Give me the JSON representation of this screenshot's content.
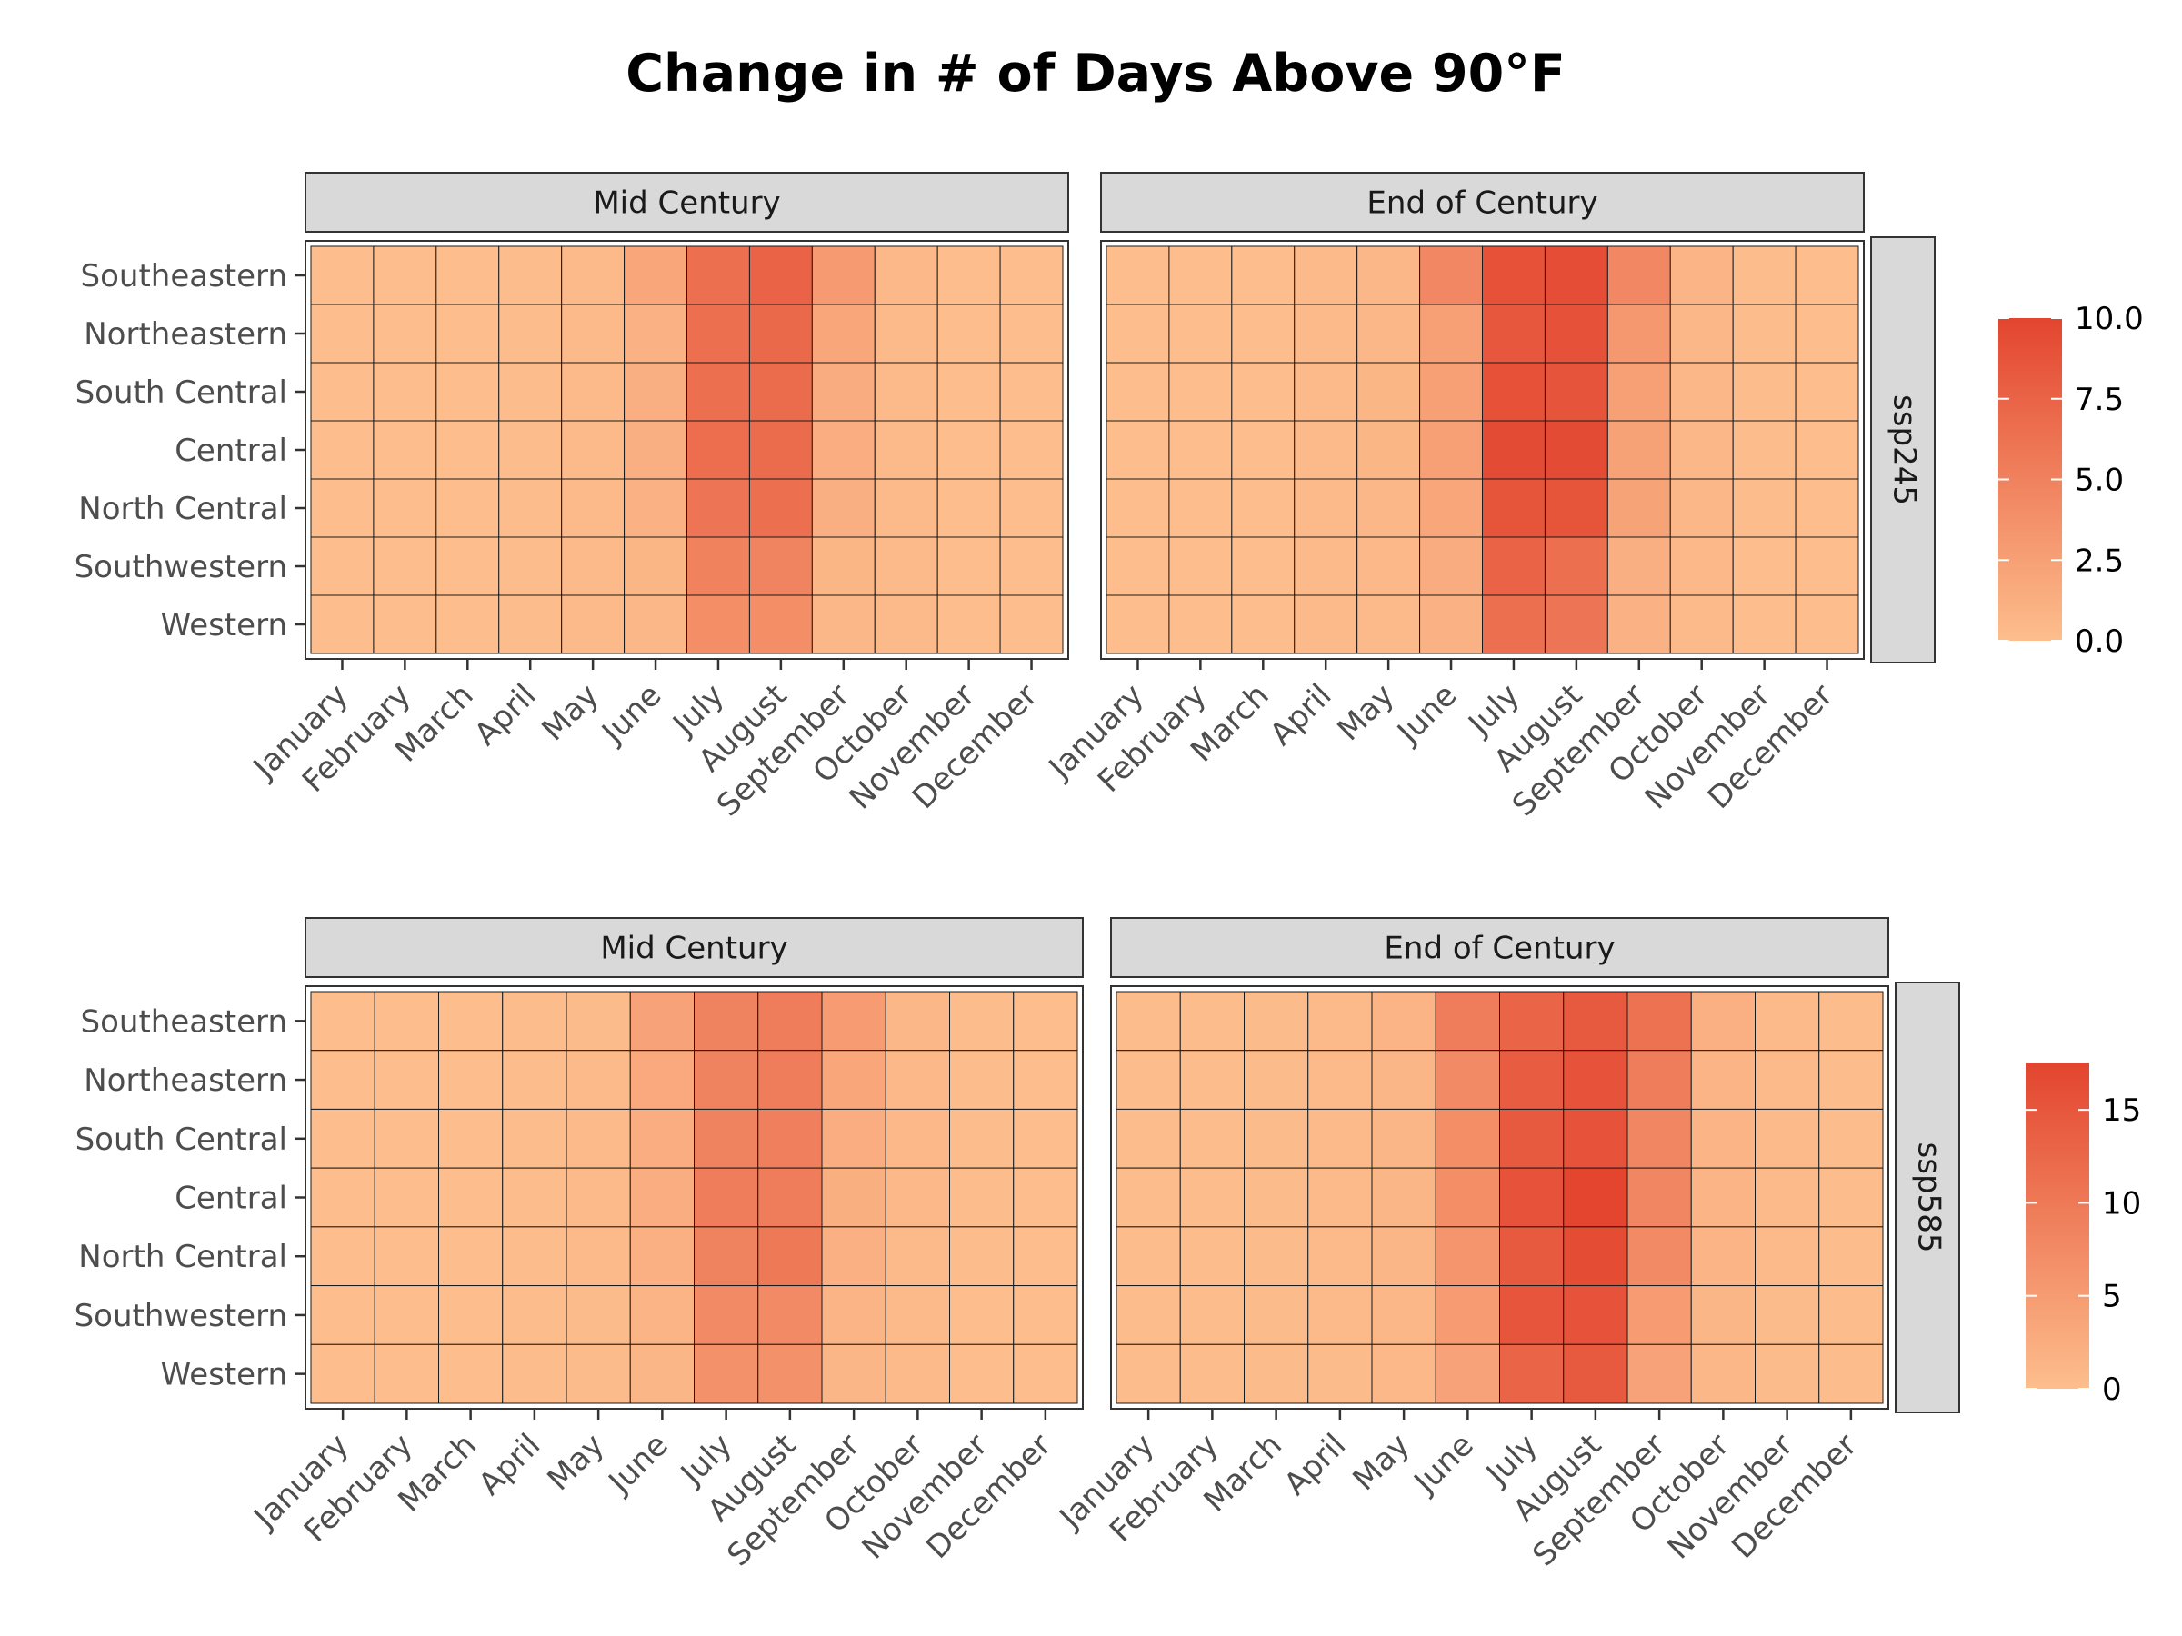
{
  "chart_data": {
    "type": "heatmap",
    "title": "Change in # of Days Above 90°F",
    "months": [
      "January",
      "February",
      "March",
      "April",
      "May",
      "June",
      "July",
      "August",
      "September",
      "October",
      "November",
      "December"
    ],
    "regions": [
      "Southeastern",
      "Northeastern",
      "South Central",
      "Central",
      "North Central",
      "Southwestern",
      "Western"
    ],
    "color_low": "#fdbe8d",
    "color_high": "#e3452f",
    "grid": false,
    "panels": [
      {
        "scenario": "ssp245",
        "legend": {
          "min": 0,
          "max": 10,
          "ticks": [
            "0.0",
            "2.5",
            "5.0",
            "7.5",
            "10.0"
          ],
          "tick_values": [
            0,
            2.5,
            5,
            7.5,
            10
          ]
        },
        "facets": [
          {
            "label": "Mid Century",
            "values": [
              [
                0.1,
                0.1,
                0.1,
                0.2,
                0.3,
                2.0,
                6.5,
                7.5,
                3.0,
                0.5,
                0.1,
                0.1
              ],
              [
                0.1,
                0.1,
                0.1,
                0.2,
                0.3,
                1.0,
                6.5,
                7.0,
                2.0,
                0.4,
                0.1,
                0.1
              ],
              [
                0.1,
                0.1,
                0.1,
                0.2,
                0.4,
                1.2,
                6.5,
                6.8,
                1.5,
                0.4,
                0.1,
                0.1
              ],
              [
                0.1,
                0.1,
                0.1,
                0.2,
                0.4,
                1.2,
                6.6,
                6.8,
                1.4,
                0.4,
                0.1,
                0.1
              ],
              [
                0.1,
                0.1,
                0.1,
                0.2,
                0.4,
                1.0,
                6.0,
                6.5,
                1.2,
                0.4,
                0.1,
                0.1
              ],
              [
                0.1,
                0.1,
                0.1,
                0.2,
                0.3,
                0.7,
                5.0,
                4.8,
                0.7,
                0.3,
                0.1,
                0.1
              ],
              [
                0.1,
                0.1,
                0.1,
                0.2,
                0.3,
                0.6,
                4.0,
                4.0,
                0.6,
                0.3,
                0.1,
                0.1
              ]
            ]
          },
          {
            "label": "End of Century",
            "values": [
              [
                0.1,
                0.1,
                0.1,
                0.3,
                0.6,
                4.5,
                9.0,
                9.3,
                4.5,
                0.8,
                0.2,
                0.1
              ],
              [
                0.1,
                0.1,
                0.1,
                0.3,
                0.6,
                2.5,
                8.5,
                8.9,
                3.2,
                0.6,
                0.2,
                0.1
              ],
              [
                0.1,
                0.1,
                0.1,
                0.3,
                0.7,
                2.5,
                9.0,
                8.7,
                2.5,
                0.6,
                0.2,
                0.1
              ],
              [
                0.1,
                0.1,
                0.1,
                0.3,
                0.7,
                2.5,
                9.5,
                9.5,
                2.4,
                0.6,
                0.2,
                0.1
              ],
              [
                0.1,
                0.1,
                0.1,
                0.3,
                0.6,
                2.0,
                8.8,
                8.8,
                2.2,
                0.6,
                0.2,
                0.1
              ],
              [
                0.1,
                0.1,
                0.1,
                0.3,
                0.5,
                1.5,
                7.5,
                6.5,
                1.2,
                0.5,
                0.1,
                0.1
              ],
              [
                0.1,
                0.1,
                0.1,
                0.3,
                0.4,
                1.0,
                6.5,
                6.0,
                1.0,
                0.4,
                0.1,
                0.1
              ]
            ]
          }
        ]
      },
      {
        "scenario": "ssp585",
        "legend": {
          "min": 0,
          "max": 17.5,
          "ticks": [
            "0",
            "5",
            "10",
            "15"
          ],
          "tick_values": [
            0,
            5,
            10,
            15
          ]
        },
        "facets": [
          {
            "label": "Mid Century",
            "values": [
              [
                0.2,
                0.2,
                0.2,
                0.3,
                0.5,
                4.0,
                8.5,
                9.5,
                5.0,
                1.0,
                0.3,
                0.2
              ],
              [
                0.2,
                0.2,
                0.2,
                0.3,
                0.6,
                3.0,
                8.5,
                9.5,
                3.5,
                0.8,
                0.3,
                0.2
              ],
              [
                0.2,
                0.2,
                0.2,
                0.3,
                0.6,
                2.5,
                8.5,
                9.0,
                2.5,
                0.8,
                0.3,
                0.2
              ],
              [
                0.2,
                0.2,
                0.2,
                0.3,
                0.6,
                2.5,
                9.5,
                9.5,
                2.2,
                0.8,
                0.3,
                0.2
              ],
              [
                0.2,
                0.2,
                0.2,
                0.3,
                0.6,
                2.0,
                8.5,
                10.0,
                2.0,
                0.7,
                0.3,
                0.2
              ],
              [
                0.2,
                0.2,
                0.2,
                0.3,
                0.5,
                1.5,
                7.5,
                7.5,
                1.5,
                0.6,
                0.2,
                0.2
              ],
              [
                0.2,
                0.2,
                0.2,
                0.3,
                0.5,
                1.2,
                6.5,
                6.5,
                1.2,
                0.6,
                0.2,
                0.2
              ]
            ]
          },
          {
            "label": "End of Century",
            "values": [
              [
                0.3,
                0.3,
                0.4,
                0.6,
                1.5,
                9.5,
                13.0,
                14.5,
                11.0,
                2.0,
                0.7,
                0.3
              ],
              [
                0.3,
                0.3,
                0.4,
                0.6,
                1.2,
                7.5,
                14.0,
                15.5,
                9.5,
                1.5,
                0.6,
                0.3
              ],
              [
                0.3,
                0.3,
                0.4,
                0.6,
                1.2,
                7.0,
                14.5,
                15.5,
                8.0,
                1.5,
                0.6,
                0.3
              ],
              [
                0.3,
                0.3,
                0.4,
                0.6,
                1.2,
                7.0,
                15.5,
                17.5,
                8.0,
                1.5,
                0.6,
                0.3
              ],
              [
                0.3,
                0.3,
                0.4,
                0.6,
                1.2,
                6.0,
                14.5,
                16.5,
                7.5,
                1.4,
                0.6,
                0.3
              ],
              [
                0.3,
                0.3,
                0.4,
                0.6,
                1.0,
                5.0,
                15.0,
                15.5,
                5.0,
                1.2,
                0.5,
                0.3
              ],
              [
                0.3,
                0.3,
                0.4,
                0.5,
                0.9,
                4.0,
                13.0,
                14.5,
                4.0,
                1.0,
                0.5,
                0.3
              ]
            ]
          }
        ]
      }
    ]
  }
}
